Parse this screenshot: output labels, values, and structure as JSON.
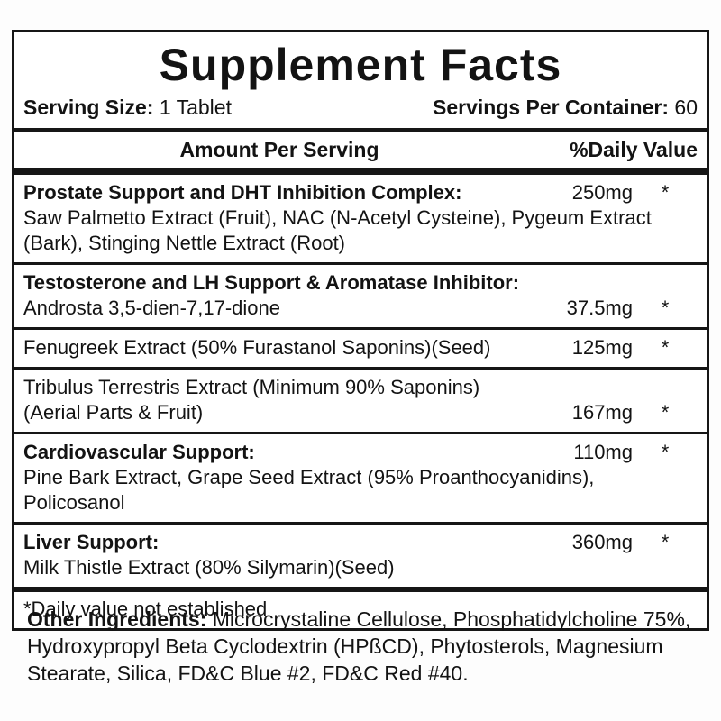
{
  "panel": {
    "title": "Supplement Facts",
    "serving_size": {
      "label": "Serving Size:",
      "value": "1 Tablet"
    },
    "servings_per_container": {
      "label": "Servings Per Container:",
      "value": "60"
    },
    "columns": {
      "amount": "Amount Per Serving",
      "daily_value": "%Daily Value"
    },
    "sections": [
      {
        "name": "Prostate Support and DHT Inhibition Complex:",
        "amount": "250mg",
        "dv": "*",
        "desc": "Saw Palmetto Extract (Fruit), NAC (N-Acetyl Cysteine), Pygeum Extract (Bark), Stinging Nettle Extract (Root)"
      },
      {
        "name": "Testosterone and LH Support & Aromatase Inhibitor:",
        "sub_name": "Androsta 3,5-dien-7,17-dione",
        "amount": "37.5mg",
        "dv": "*"
      },
      {
        "name": "Fenugreek Extract (50% Furastanol Saponins)(Seed)",
        "amount": "125mg",
        "dv": "*"
      },
      {
        "name": "Tribulus Terrestris Extract (Minimum 90% Saponins)",
        "sub_name": "(Aerial Parts & Fruit)",
        "amount": "167mg",
        "dv": "*"
      },
      {
        "name": "Cardiovascular Support:",
        "amount": "110mg",
        "dv": "*",
        "desc": "Pine Bark Extract, Grape Seed Extract (95% Proanthocyanidins), Policosanol"
      },
      {
        "name": "Liver Support:",
        "amount": "360mg",
        "dv": "*",
        "desc": "Milk Thistle Extract (80% Silymarin)(Seed)"
      }
    ],
    "footnote": "*Daily value not established"
  },
  "other_ingredients": {
    "label": "Other Ingredients:",
    "text": "Microcrystaline Cellulose, Phosphatidylcholine 75%, Hydroxypropyl Beta Cyclodextrin (HPßCD), Phytosterols, Magnesium Stearate, Silica, FD&C Blue #2, FD&C Red #40."
  },
  "colors": {
    "ink": "#161616",
    "background": "#ffffff"
  }
}
